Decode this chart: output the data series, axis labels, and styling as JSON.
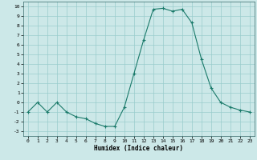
{
  "x": [
    0,
    1,
    2,
    3,
    4,
    5,
    6,
    7,
    8,
    9,
    10,
    11,
    12,
    13,
    14,
    15,
    16,
    17,
    18,
    19,
    20,
    21,
    22,
    23
  ],
  "y": [
    -1,
    0,
    -1,
    0,
    -1,
    -1.5,
    -1.7,
    -2.2,
    -2.5,
    -2.5,
    -0.5,
    3,
    6.5,
    9.7,
    9.8,
    9.5,
    9.7,
    8.3,
    4.5,
    1.5,
    0,
    -0.5,
    -0.8,
    -1
  ],
  "xlabel": "Humidex (Indice chaleur)",
  "xlim": [
    -0.5,
    23.5
  ],
  "ylim": [
    -3.5,
    10.5
  ],
  "yticks": [
    -3,
    -2,
    -1,
    0,
    1,
    2,
    3,
    4,
    5,
    6,
    7,
    8,
    9,
    10
  ],
  "xticks": [
    0,
    1,
    2,
    3,
    4,
    5,
    6,
    7,
    8,
    9,
    10,
    11,
    12,
    13,
    14,
    15,
    16,
    17,
    18,
    19,
    20,
    21,
    22,
    23
  ],
  "line_color": "#1a7a6a",
  "marker": "+",
  "bg_color": "#cce8e8",
  "grid_color": "#99cccc"
}
